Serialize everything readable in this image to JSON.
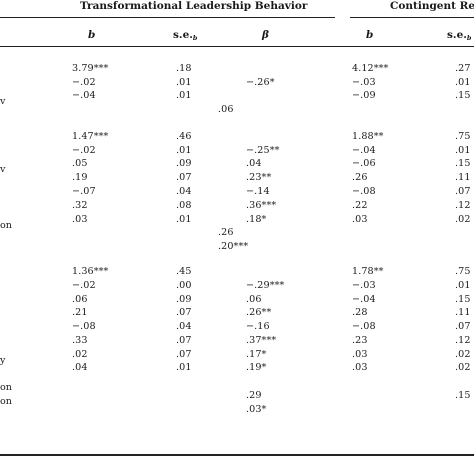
{
  "header": {
    "group1": "Transformational Leadership Behavior",
    "group2": "Contingent Rewa"
  },
  "columns": {
    "b1": "b",
    "se1": "s.e.",
    "se1_sub": "b",
    "beta1": "β",
    "b2": "b",
    "se2": "s.e.",
    "se2_sub": "b"
  },
  "row_labels": [
    "v",
    "v",
    "on",
    "y",
    "on",
    "on"
  ],
  "rows": [
    {
      "b1": "3.79***",
      "se1": ".18",
      "beta1": "",
      "b2": "4.12***",
      "se2": ".27"
    },
    {
      "b1": "−.02",
      "se1": ".01",
      "beta1": "−.26*",
      "b2": "−.03",
      "se2": ".01"
    },
    {
      "b1": "−.04",
      "se1": ".01",
      "beta1": "",
      "b2": "−.09",
      "se2": ".15"
    },
    {
      "b1": "",
      "se1": "",
      "beta1": ".06",
      "b2": "",
      "se2": ""
    },
    {
      "b1": "1.47***",
      "se1": ".46",
      "beta1": "",
      "b2": "1.88**",
      "se2": ".75"
    },
    {
      "b1": "−.02",
      "se1": ".01",
      "beta1": "−.25**",
      "b2": "−.04",
      "se2": ".01"
    },
    {
      "b1": ".05",
      "se1": ".09",
      "beta1": ".04",
      "b2": "−.06",
      "se2": ".15"
    },
    {
      "b1": ".19",
      "se1": ".07",
      "beta1": ".23**",
      "b2": ".26",
      "se2": ".11"
    },
    {
      "b1": "−.07",
      "se1": ".04",
      "beta1": "−.14",
      "b2": "−.08",
      "se2": ".07"
    },
    {
      "b1": ".32",
      "se1": ".08",
      "beta1": ".36***",
      "b2": ".22",
      "se2": ".12"
    },
    {
      "b1": ".03",
      "se1": ".01",
      "beta1": ".18*",
      "b2": ".03",
      "se2": ".02"
    },
    {
      "b1": "",
      "se1": "",
      "beta1": ".26",
      "b2": "",
      "se2": ""
    },
    {
      "b1": "",
      "se1": "",
      "beta1": ".20***",
      "b2": "",
      "se2": ""
    },
    {
      "b1": "1.36***",
      "se1": ".45",
      "beta1": "",
      "b2": "1.78**",
      "se2": ".75"
    },
    {
      "b1": "−.02",
      "se1": ".00",
      "beta1": "−.29***",
      "b2": "−.03",
      "se2": ".01"
    },
    {
      "b1": ".06",
      "se1": ".09",
      "beta1": ".06",
      "b2": "−.04",
      "se2": ".15"
    },
    {
      "b1": ".21",
      "se1": ".07",
      "beta1": ".26**",
      "b2": ".28",
      "se2": ".11"
    },
    {
      "b1": "−.08",
      "se1": ".04",
      "beta1": "−.16",
      "b2": "−.08",
      "se2": ".07"
    },
    {
      "b1": ".33",
      "se1": ".07",
      "beta1": ".37***",
      "b2": ".23",
      "se2": ".12"
    },
    {
      "b1": ".02",
      "se1": ".07",
      "beta1": ".17*",
      "b2": ".03",
      "se2": ".02"
    },
    {
      "b1": ".04",
      "se1": ".01",
      "beta1": ".19*",
      "b2": ".03",
      "se2": ".02"
    },
    {
      "b1": "",
      "se1": "",
      "beta1": ".29",
      "b2": "",
      "se2": ".15"
    },
    {
      "b1": "",
      "se1": "",
      "beta1": ".03*",
      "b2": "",
      "se2": ""
    }
  ]
}
